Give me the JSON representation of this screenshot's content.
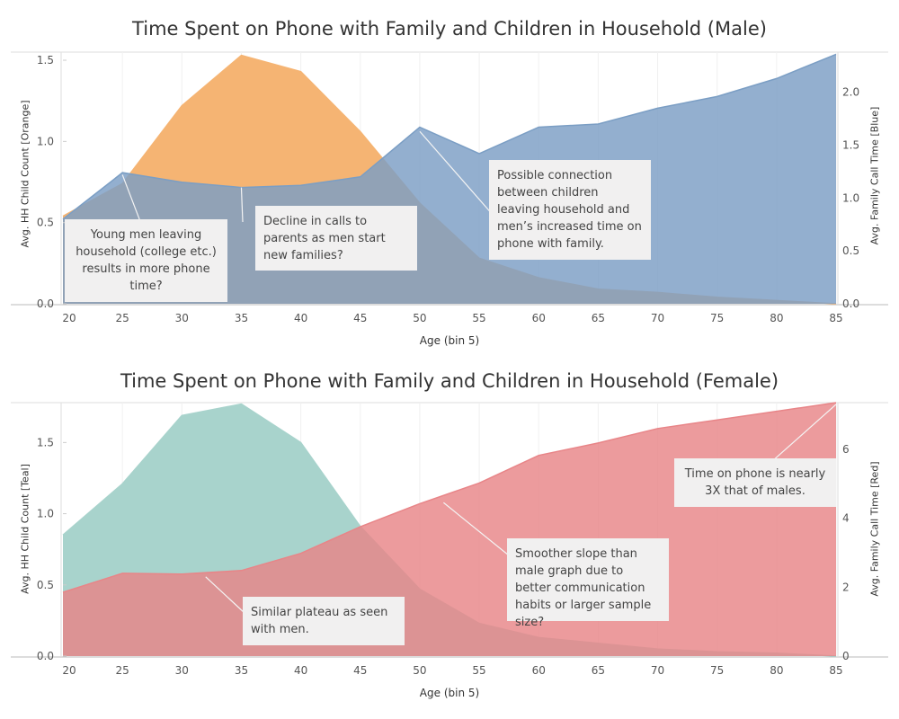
{
  "colors": {
    "orange": "#f5b473",
    "blue": "#7b9ec4",
    "teal": "#a8d3cc",
    "red": "#e88588",
    "callout_bg": "#f1f0f0",
    "grid": "#eeeeee"
  },
  "chart_data": [
    {
      "type": "area",
      "title": "Time Spent on Phone with Family and Children in Household (Male)",
      "xlabel": "Age (bin 5)",
      "ylabel_left": "Avg. HH Child Count [Orange]",
      "ylabel_right": "Avg. Family Call Time [Blue]",
      "x": [
        20,
        25,
        30,
        35,
        40,
        45,
        50,
        55,
        60,
        65,
        70,
        75,
        80,
        85
      ],
      "x_ticks": [
        "20",
        "25",
        "30",
        "35",
        "40",
        "45",
        "50",
        "55",
        "60",
        "65",
        "70",
        "75",
        "80",
        "85"
      ],
      "ylim_left": [
        0,
        1.55
      ],
      "ylim_right": [
        0,
        2.38
      ],
      "yticks_left": [
        "0.0",
        "0.5",
        "1.0",
        "1.5"
      ],
      "yticks_right": [
        "0.0",
        "0.5",
        "1.0",
        "1.5",
        "2.0"
      ],
      "series": [
        {
          "axis": "left",
          "color": "orange",
          "values": [
            0.54,
            0.74,
            1.22,
            1.53,
            1.43,
            1.06,
            0.62,
            0.28,
            0.16,
            0.09,
            0.07,
            0.04,
            0.02,
            0.0
          ]
        },
        {
          "axis": "right",
          "color": "blue",
          "values": [
            0.8,
            1.24,
            1.15,
            1.1,
            1.12,
            1.2,
            1.67,
            1.42,
            1.67,
            1.7,
            1.85,
            1.96,
            2.13,
            2.36
          ]
        }
      ],
      "annotations": [
        {
          "text": "Young men leaving household (college etc.) results in more phone time?",
          "target": [
            25,
            1.22,
            "right"
          ]
        },
        {
          "text": "Decline in calls to parents as men start new families?",
          "target": [
            35,
            1.1,
            "right"
          ]
        },
        {
          "text": "Possible connection between children leaving household and men’s increased time on phone with family.",
          "target": [
            50,
            1.63,
            "right"
          ]
        }
      ]
    },
    {
      "type": "area",
      "title": "Time Spent on Phone with Family and Children in Household (Female)",
      "xlabel": "Age (bin 5)",
      "ylabel_left": "Avg. HH Child Count [Teal]",
      "ylabel_right": "Avg. Family Call Time [Red]",
      "x": [
        20,
        25,
        30,
        35,
        40,
        45,
        50,
        55,
        60,
        65,
        70,
        75,
        80,
        85
      ],
      "x_ticks": [
        "20",
        "25",
        "30",
        "35",
        "40",
        "45",
        "50",
        "55",
        "60",
        "65",
        "70",
        "75",
        "80",
        "85"
      ],
      "ylim_left": [
        0,
        1.78
      ],
      "ylim_right": [
        0,
        7.35
      ],
      "yticks_left": [
        "0.0",
        "0.5",
        "1.0",
        "1.5"
      ],
      "yticks_right": [
        "0",
        "2",
        "4",
        "6"
      ],
      "series": [
        {
          "axis": "left",
          "color": "teal",
          "values": [
            0.85,
            1.21,
            1.69,
            1.77,
            1.5,
            0.91,
            0.47,
            0.23,
            0.13,
            0.09,
            0.05,
            0.03,
            0.02,
            0.0
          ]
        },
        {
          "axis": "right",
          "color": "red",
          "values": [
            1.85,
            2.4,
            2.38,
            2.48,
            2.98,
            3.75,
            4.42,
            5.02,
            5.82,
            6.18,
            6.6,
            6.85,
            7.1,
            7.35
          ]
        }
      ],
      "annotations": [
        {
          "text": "Similar plateau as seen with men.",
          "target": [
            32,
            2.3,
            "right"
          ]
        },
        {
          "text": "Smoother slope than male graph due to better communication habits or larger sample size?",
          "target": [
            52,
            4.45,
            "right"
          ]
        },
        {
          "text": "Time on phone is nearly 3X that of males.",
          "target": [
            85,
            7.3,
            "right"
          ]
        }
      ]
    }
  ]
}
